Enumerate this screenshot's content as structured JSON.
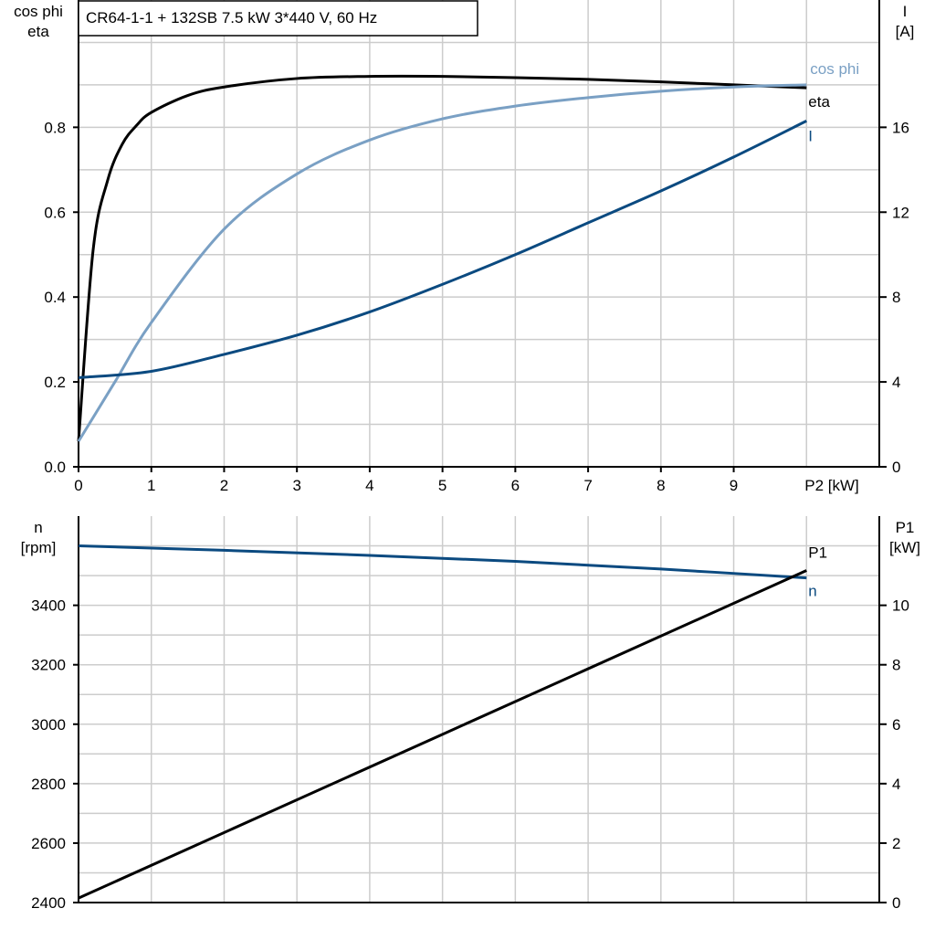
{
  "colors": {
    "eta": "#000000",
    "cos_phi": "#7aa0c4",
    "I": "#0b4a80",
    "n": "#0b4a80",
    "P1": "#000000",
    "grid": "#cccccc"
  },
  "chart_data": [
    {
      "type": "line",
      "title": "CR64-1-1 + 132SB   7.5 kW   3*440 V, 60 Hz",
      "xlabel": "P2 [kW]",
      "ylabel_left": [
        "cos phi",
        "eta"
      ],
      "ylabel_right": [
        "I",
        "[A]"
      ],
      "xlim": [
        0,
        11
      ],
      "ylim_left": [
        0,
        1.1
      ],
      "ylim_right": [
        0,
        22
      ],
      "xticks": [
        "0",
        "1",
        "2",
        "3",
        "4",
        "5",
        "6",
        "7",
        "8",
        "9"
      ],
      "yticks_left": [
        "0.0",
        "0.2",
        "0.4",
        "0.6",
        "0.8"
      ],
      "yticks_right": [
        "0",
        "4",
        "8",
        "12",
        "16"
      ],
      "grid": true,
      "series": [
        {
          "name": "eta",
          "axis": "left",
          "x": [
            0,
            0.2,
            0.4,
            0.6,
            0.8,
            1,
            1.5,
            2,
            3,
            4,
            5,
            6,
            7,
            8,
            9,
            10
          ],
          "y": [
            0.06,
            0.51,
            0.675,
            0.76,
            0.805,
            0.835,
            0.875,
            0.895,
            0.915,
            0.92,
            0.92,
            0.917,
            0.913,
            0.907,
            0.9,
            0.893
          ]
        },
        {
          "name": "cos phi",
          "axis": "left",
          "x": [
            0,
            0.5,
            1,
            2,
            3,
            4,
            5,
            6,
            7,
            8,
            9,
            10
          ],
          "y": [
            0.06,
            0.2,
            0.34,
            0.56,
            0.69,
            0.77,
            0.82,
            0.85,
            0.87,
            0.885,
            0.895,
            0.9
          ]
        },
        {
          "name": "I",
          "axis": "right",
          "x": [
            0,
            1,
            2,
            3,
            4,
            5,
            6,
            7,
            8,
            9,
            10
          ],
          "y": [
            4.2,
            4.5,
            5.3,
            6.2,
            7.3,
            8.6,
            10.0,
            11.5,
            13.0,
            14.6,
            16.3
          ]
        }
      ]
    },
    {
      "type": "line",
      "ylabel_left": [
        "n",
        "[rpm]"
      ],
      "ylabel_right": [
        "P1",
        "[kW]"
      ],
      "xlim": [
        0,
        11
      ],
      "ylim_left": [
        2400,
        3700
      ],
      "ylim_right": [
        0,
        13
      ],
      "yticks_left": [
        "2400",
        "2600",
        "2800",
        "3000",
        "3200",
        "3400"
      ],
      "yticks_right": [
        "0",
        "2",
        "4",
        "6",
        "8",
        "10"
      ],
      "grid": true,
      "series": [
        {
          "name": "n",
          "axis": "left",
          "x": [
            0,
            2,
            4,
            6,
            8,
            10
          ],
          "y": [
            3600,
            3585,
            3568,
            3548,
            3522,
            3492
          ]
        },
        {
          "name": "P1",
          "axis": "right",
          "x": [
            0,
            10
          ],
          "y": [
            0.15,
            11.17
          ]
        }
      ]
    }
  ]
}
